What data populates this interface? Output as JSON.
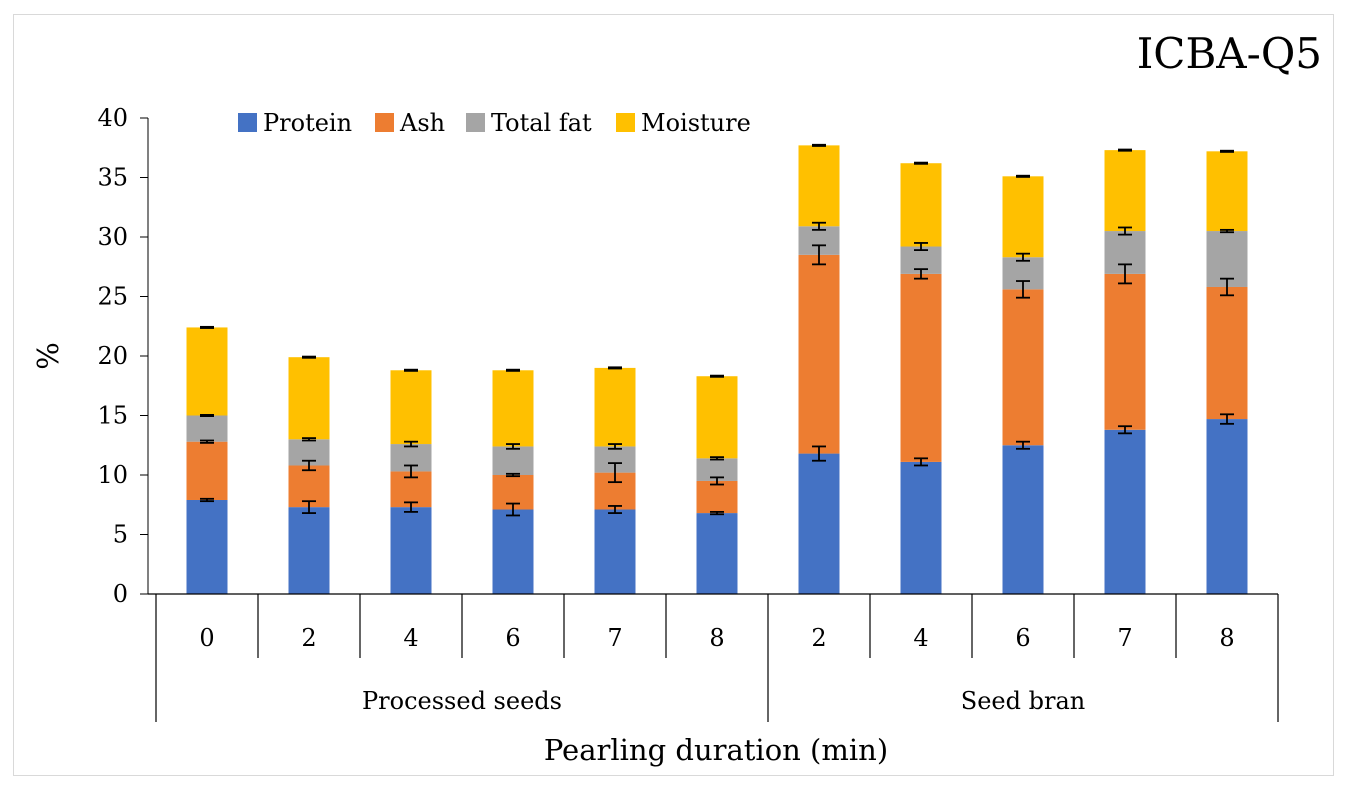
{
  "chart_data": {
    "type": "bar",
    "stacked": true,
    "title": "ICBA-Q5",
    "xlabel": "Pearling duration (min)",
    "ylabel": "%",
    "ylim": [
      0,
      40
    ],
    "ytick_step": 5,
    "yticks": [
      "0",
      "5",
      "10",
      "15",
      "20",
      "25",
      "30",
      "35",
      "40"
    ],
    "legend_position": "top-left",
    "groups": [
      {
        "label": "Processed seeds",
        "categories": [
          "0",
          "2",
          "4",
          "6",
          "7",
          "8"
        ]
      },
      {
        "label": "Seed bran",
        "categories": [
          "2",
          "4",
          "6",
          "7",
          "8"
        ]
      }
    ],
    "categories": [
      "0",
      "2",
      "4",
      "6",
      "7",
      "8",
      "2",
      "4",
      "6",
      "7",
      "8"
    ],
    "series": [
      {
        "name": "Protein",
        "color": "#4472c4",
        "values": [
          7.9,
          7.3,
          7.3,
          7.1,
          7.1,
          6.8,
          11.8,
          11.1,
          12.5,
          13.8,
          14.7
        ],
        "errors": [
          0.1,
          0.5,
          0.4,
          0.5,
          0.3,
          0.1,
          0.6,
          0.3,
          0.3,
          0.3,
          0.4
        ]
      },
      {
        "name": "Ash",
        "color": "#ed7d31",
        "values": [
          4.9,
          3.5,
          3.0,
          2.9,
          3.1,
          2.7,
          16.7,
          15.8,
          13.1,
          13.1,
          11.1
        ],
        "errors": [
          0.1,
          0.4,
          0.5,
          0.1,
          0.8,
          0.3,
          0.8,
          0.4,
          0.7,
          0.8,
          0.7
        ]
      },
      {
        "name": "Total fat",
        "color": "#a5a5a5",
        "values": [
          2.2,
          2.2,
          2.3,
          2.4,
          2.2,
          1.9,
          2.4,
          2.3,
          2.7,
          3.6,
          4.7
        ],
        "errors": [
          0.05,
          0.1,
          0.2,
          0.2,
          0.2,
          0.1,
          0.3,
          0.3,
          0.3,
          0.3,
          0.1
        ]
      },
      {
        "name": "Moisture",
        "color": "#ffc000",
        "values": [
          7.4,
          6.9,
          6.2,
          6.4,
          6.6,
          6.9,
          6.8,
          7.0,
          6.8,
          6.8,
          6.7
        ],
        "errors": [
          0.05,
          0.05,
          0.05,
          0.05,
          0.05,
          0.05,
          0.05,
          0.05,
          0.05,
          0.05,
          0.05
        ]
      }
    ]
  }
}
